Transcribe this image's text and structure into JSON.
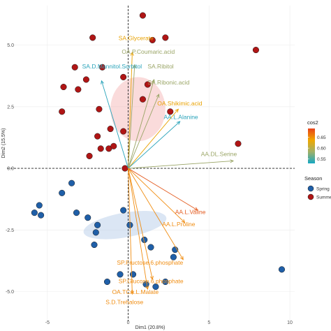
{
  "chart_data": {
    "type": "scatter",
    "subtype": "pca-biplot",
    "title": "",
    "xlabel": "Dim1 (20.8%)",
    "ylabel": "Dim2 (15.5%)",
    "xlim": [
      -7.5,
      10.3
    ],
    "ylim": [
      -6.2,
      6.6
    ],
    "x_ticks": [
      -5,
      0,
      5,
      10
    ],
    "y_ticks": [
      -5.0,
      -2.5,
      0.0,
      2.5,
      5.0
    ],
    "x_tick_labels": [
      "-5",
      "0",
      "5",
      "10"
    ],
    "y_tick_labels": [
      "-5.0",
      "-2.5",
      "0.0",
      "2.5",
      "5.0"
    ],
    "grid": true,
    "legend_position": "right",
    "series": [
      {
        "name": "Spring",
        "color": "#1f5fa8",
        "points": [
          [
            -3.5,
            -0.6
          ],
          [
            -4.1,
            -1.0
          ],
          [
            -5.5,
            -1.5
          ],
          [
            -5.8,
            -1.8
          ],
          [
            -5.4,
            -1.9
          ],
          [
            -3.2,
            -1.8
          ],
          [
            -2.5,
            -2.0
          ],
          [
            -1.9,
            -2.3
          ],
          [
            -2.0,
            -2.6
          ],
          [
            -2.1,
            -3.1
          ],
          [
            -0.3,
            -1.7
          ],
          [
            0.1,
            -2.3
          ],
          [
            1.0,
            -2.9
          ],
          [
            1.4,
            -3.2
          ],
          [
            2.9,
            -3.3
          ],
          [
            2.8,
            -3.6
          ],
          [
            -0.5,
            -4.3
          ],
          [
            0.3,
            -4.3
          ],
          [
            -1.3,
            -4.6
          ],
          [
            1.1,
            -4.7
          ],
          [
            1.7,
            -4.8
          ],
          [
            2.3,
            -4.6
          ],
          [
            9.5,
            -4.1
          ]
        ]
      },
      {
        "name": "Summer",
        "color": "#b01515",
        "points": [
          [
            0.9,
            6.2
          ],
          [
            -2.2,
            5.3
          ],
          [
            1.5,
            5.2
          ],
          [
            2.3,
            5.3
          ],
          [
            7.9,
            4.8
          ],
          [
            -3.3,
            4.1
          ],
          [
            -2.6,
            3.6
          ],
          [
            -1.6,
            4.1
          ],
          [
            -0.3,
            3.7
          ],
          [
            -4.0,
            3.3
          ],
          [
            -3.1,
            3.2
          ],
          [
            1.2,
            3.4
          ],
          [
            0.9,
            2.8
          ],
          [
            -4.1,
            2.3
          ],
          [
            -1.8,
            2.4
          ],
          [
            -1.1,
            1.6
          ],
          [
            -0.3,
            1.5
          ],
          [
            -1.9,
            1.3
          ],
          [
            -2.4,
            0.5
          ],
          [
            -1.7,
            0.8
          ],
          [
            -1.2,
            0.8
          ],
          [
            2.6,
            2.3
          ],
          [
            6.8,
            1.0
          ],
          [
            -0.2,
            0.0
          ],
          [
            -0.9,
            0.9
          ]
        ]
      }
    ],
    "ellipses": [
      {
        "name": "Summer",
        "color": "#f4b0b0",
        "center": [
          0.6,
          2.4
        ],
        "radii": [
          1.7,
          1.3
        ]
      },
      {
        "name": "Spring",
        "color": "#b0c8e6",
        "center": [
          -0.2,
          -2.3
        ],
        "radii": [
          2.6,
          0.5
        ],
        "angle": -10
      }
    ],
    "variables": [
      {
        "label": "SA.Glycerate",
        "x": 0.25,
        "y": 4.7,
        "color": "#e8a100",
        "cos2": 0.62
      },
      {
        "label": "OA.P.Coumaric.acid",
        "x": 0.4,
        "y": 4.2,
        "color": "#9aa566",
        "cos2": 0.59
      },
      {
        "label": "SA.D.Mannitol.Sorbitol",
        "x": -1.65,
        "y": 3.55,
        "color": "#29a3ba",
        "cos2": 0.56
      },
      {
        "label": "SA.Ribitol",
        "x": 1.6,
        "y": 3.6,
        "color": "#9aa566",
        "cos2": 0.59
      },
      {
        "label": "SA.Ribonic.acid",
        "x": 1.9,
        "y": 3.0,
        "color": "#9aa566",
        "cos2": 0.59
      },
      {
        "label": "OA.Shikimic.acid",
        "x": 3.1,
        "y": 2.4,
        "color": "#e8a100",
        "cos2": 0.62
      },
      {
        "label": "AA.L.Alanine",
        "x": 3.2,
        "y": 1.9,
        "color": "#29a3ba",
        "cos2": 0.56
      },
      {
        "label": "AA.DL.Serine",
        "x": 6.5,
        "y": 0.3,
        "color": "#9aa566",
        "cos2": 0.59
      },
      {
        "label": "AA.L.Valine",
        "x": 4.3,
        "y": -1.7,
        "color": "#e35a1e",
        "cos2": 0.68
      },
      {
        "label": "AA.L.Proline",
        "x": 3.5,
        "y": -2.2,
        "color": "#f08d12",
        "cos2": 0.64
      },
      {
        "label": "SP.Fructose.6.phosphate",
        "x": 3.4,
        "y": -3.7,
        "color": "#f08d12",
        "cos2": 0.64
      },
      {
        "label": "SP.Glucose.6.phosphate",
        "x": 1.5,
        "y": -4.5,
        "color": "#f08d12",
        "cos2": 0.64
      },
      {
        "label": "OA.TCA.L.Malate",
        "x": 1.2,
        "y": -4.9,
        "color": "#f08d12",
        "cos2": 0.64
      },
      {
        "label": "S.D.Trehalose",
        "x": 0.25,
        "y": -5.1,
        "color": "#f08d12",
        "cos2": 0.64
      }
    ],
    "variable_label_positions": [
      [
        -0.6,
        5.2
      ],
      [
        -0.4,
        4.65
      ],
      [
        -2.85,
        4.05
      ],
      [
        1.2,
        4.05
      ],
      [
        1.2,
        3.4
      ],
      [
        1.8,
        2.55
      ],
      [
        2.2,
        2.0
      ],
      [
        4.5,
        0.5
      ],
      [
        2.9,
        -1.85
      ],
      [
        2.1,
        -2.35
      ],
      [
        -0.7,
        -3.9
      ],
      [
        -0.6,
        -4.65
      ],
      [
        -1.0,
        -5.1
      ],
      [
        -1.4,
        -5.5
      ]
    ],
    "legend_color": {
      "title": "cos2",
      "min": 0.53,
      "max": 0.69,
      "ticks": [
        0.65,
        0.6,
        0.55
      ],
      "tick_labels": [
        "0.65",
        "0.60",
        "0.55"
      ],
      "gradient": [
        "#e8421a",
        "#f0a800",
        "#9fb068",
        "#17a8c3"
      ]
    },
    "legend_group": {
      "title": "Season",
      "entries": [
        {
          "label": "Spring",
          "color": "#1f5fa8"
        },
        {
          "label": "Summer",
          "color": "#b01515"
        }
      ]
    }
  }
}
